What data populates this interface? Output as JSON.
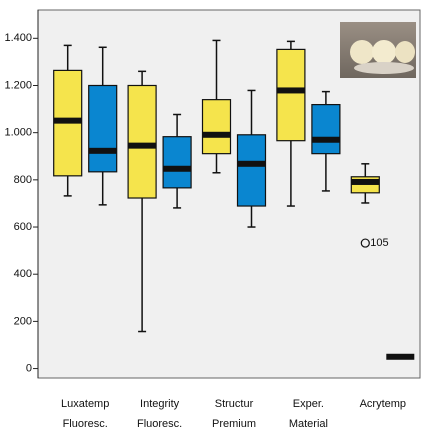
{
  "chart_data": {
    "type": "box",
    "categories": [
      [
        "Luxatemp",
        "Fluoresc."
      ],
      [
        "Integrity",
        "Fluoresc."
      ],
      [
        "Structur",
        "Premium"
      ],
      [
        "Exper.",
        "Material"
      ],
      [
        "Acrytemp"
      ]
    ],
    "ylim": [
      -40,
      1520
    ],
    "yticks": [
      0,
      200,
      400,
      600,
      800,
      {
        "value": 1000,
        "label": "1.000"
      },
      {
        "value": 1200,
        "label": "1.200"
      },
      {
        "value": 1400,
        "label": "1.400"
      }
    ],
    "series": [
      {
        "color": "#f5e44c",
        "values": [
          {
            "whislo": 732,
            "q1": 817,
            "med": 1051,
            "q3": 1264,
            "whishi": 1370
          },
          {
            "whislo": 157,
            "q1": 723,
            "med": 945,
            "q3": 1200,
            "whishi": 1260
          },
          {
            "whislo": 830,
            "q1": 911,
            "med": 991,
            "q3": 1140,
            "whishi": 1391
          },
          {
            "whislo": 689,
            "q1": 966,
            "med": 1179,
            "q3": 1353,
            "whishi": 1387
          },
          {
            "whislo": 702,
            "q1": 745,
            "med": 791,
            "q3": 813,
            "whishi": 868,
            "outliers": [
              {
                "value": 532,
                "label": "105"
              }
            ]
          }
        ]
      },
      {
        "color": "#0a86d0",
        "values": [
          {
            "whislo": 694,
            "q1": 834,
            "med": 923,
            "q3": 1200,
            "whishi": 1362
          },
          {
            "whislo": 681,
            "q1": 766,
            "med": 847,
            "q3": 983,
            "whishi": 1077
          },
          {
            "whislo": 600,
            "q1": 689,
            "med": 868,
            "q3": 991,
            "whishi": 1179
          },
          {
            "whislo": 753,
            "q1": 911,
            "med": 970,
            "q3": 1119,
            "whishi": 1174
          },
          {
            "med": 50
          }
        ]
      }
    ]
  }
}
